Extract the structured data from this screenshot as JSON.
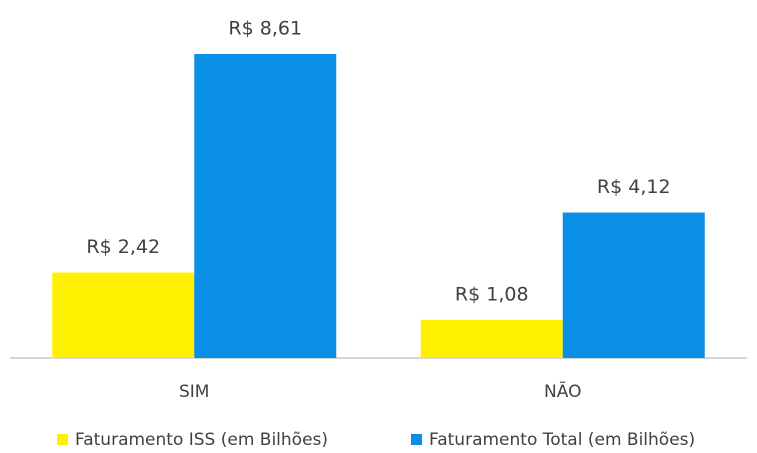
{
  "chart_data": {
    "type": "bar",
    "categories": [
      "SIM",
      "NÃO"
    ],
    "series": [
      {
        "name": "Faturamento ISS (em Bilhões)",
        "color": "#FFF000",
        "values": [
          2.42,
          1.08
        ],
        "value_labels": [
          "R$ 2,42",
          "R$ 1,08"
        ]
      },
      {
        "name": "Faturamento Total (em Bilhões)",
        "color": "#0A8FE6",
        "values": [
          8.61,
          4.12
        ],
        "value_labels": [
          "R$ 8,61",
          "R$ 4,12"
        ]
      }
    ],
    "legend": "bottom"
  }
}
